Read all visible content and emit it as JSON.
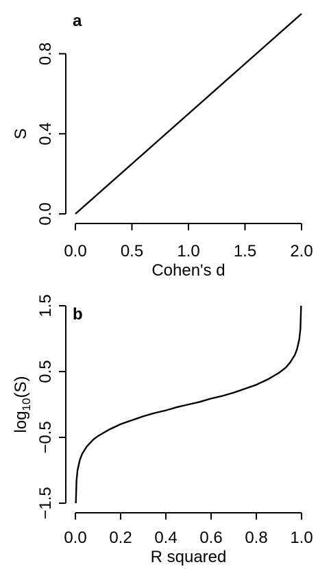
{
  "chart_data": [
    {
      "type": "line",
      "panel_label": "a",
      "xlabel": "Cohen's d",
      "ylabel": "S",
      "xlim": [
        0,
        2
      ],
      "ylim": [
        0,
        1
      ],
      "x_ticks": [
        "0.0",
        "0.5",
        "1.0",
        "1.5",
        "2.0"
      ],
      "y_ticks": [
        "0.0",
        "0.4",
        "0.8"
      ],
      "series": [
        {
          "x": [
            0.0,
            0.5,
            1.0,
            1.5,
            2.0
          ],
          "y": [
            0.0,
            0.25,
            0.5,
            0.75,
            1.0
          ]
        }
      ]
    },
    {
      "type": "line",
      "panel_label": "b",
      "xlabel": "R squared",
      "ylabel": "log10(S)",
      "ylabel_parts": {
        "base": "log",
        "subscript": "10",
        "suffix": "(S)"
      },
      "xlim": [
        0,
        1
      ],
      "ylim": [
        -1.5,
        1.5
      ],
      "x_ticks": [
        "0.0",
        "0.2",
        "0.4",
        "0.6",
        "0.8",
        "1.0"
      ],
      "y_ticks": [
        "-1.5",
        "-0.5",
        "0.5",
        "1.5"
      ],
      "series": [
        {
          "x": [
            0.002,
            0.005,
            0.01,
            0.02,
            0.03,
            0.05,
            0.08,
            0.1,
            0.15,
            0.2,
            0.25,
            0.3,
            0.35,
            0.4,
            0.45,
            0.5,
            0.55,
            0.6,
            0.65,
            0.7,
            0.75,
            0.8,
            0.85,
            0.9,
            0.93,
            0.95,
            0.97,
            0.98,
            0.99,
            0.995,
            0.998
          ],
          "y": [
            -1.5,
            -1.15,
            -0.99,
            -0.84,
            -0.75,
            -0.64,
            -0.53,
            -0.48,
            -0.38,
            -0.3,
            -0.24,
            -0.18,
            -0.13,
            -0.09,
            -0.04,
            0.0,
            0.04,
            0.09,
            0.13,
            0.18,
            0.24,
            0.3,
            0.38,
            0.48,
            0.56,
            0.64,
            0.75,
            0.84,
            0.99,
            1.15,
            1.5
          ]
        }
      ]
    }
  ]
}
